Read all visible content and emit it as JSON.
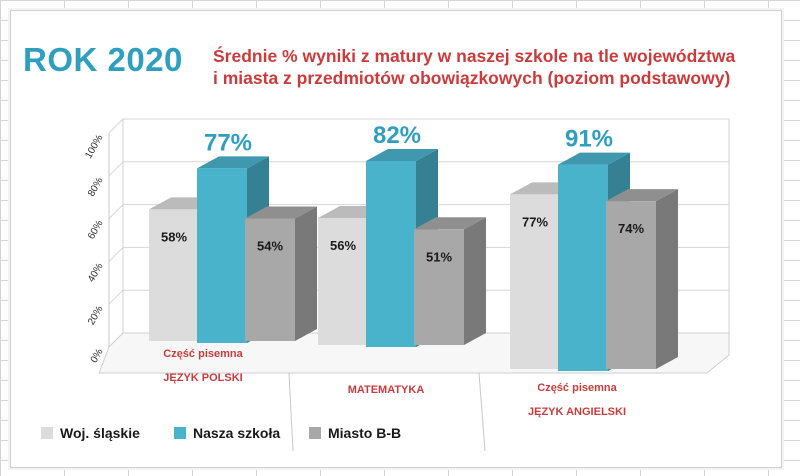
{
  "page": {
    "year_title": "ROK 2020",
    "title_line1": "Średnie % wyniki z matury w naszej szkole na tle województwa",
    "title_line2": "i miasta z przedmiotów obowiązkowych (poziom podstawowy)"
  },
  "colors": {
    "title": "#cc3b3b",
    "year": "#2f9fbf",
    "woj": "#dcdcdc",
    "szkola": "#4ab3cc",
    "miasto": "#a8a8a8",
    "category_label": "#cc3b3b"
  },
  "chart_data": {
    "type": "bar",
    "view": "3d-clustered-column",
    "title": "Średnie % wyniki z matury w naszej szkole na tle województwa i miasta z przedmiotów obowiązkowych (poziom podstawowy)",
    "categories": [
      [
        "Część pisemna",
        "JĘZYK POLSKI"
      ],
      [
        "MATEMATYKA"
      ],
      [
        "Część pisemna",
        "JĘZYK ANGIELSKI"
      ]
    ],
    "series": [
      {
        "name": "Woj. śląskie",
        "values": [
          58,
          56,
          77
        ],
        "labels": [
          "58%",
          "56%",
          "77%"
        ]
      },
      {
        "name": "Nasza szkoła",
        "values": [
          77,
          82,
          91
        ],
        "labels": [
          "77%",
          "82%",
          "91%"
        ]
      },
      {
        "name": "Miasto B-B",
        "values": [
          54,
          51,
          74
        ],
        "labels": [
          "54%",
          "51%",
          "74%"
        ]
      }
    ],
    "yaxis": {
      "ticks": [
        "0%",
        "20%",
        "40%",
        "60%",
        "80%",
        "100%"
      ],
      "min": 0,
      "max": 100
    },
    "ylim": [
      0,
      100
    ],
    "legend": "bottom-left",
    "grid": true
  }
}
